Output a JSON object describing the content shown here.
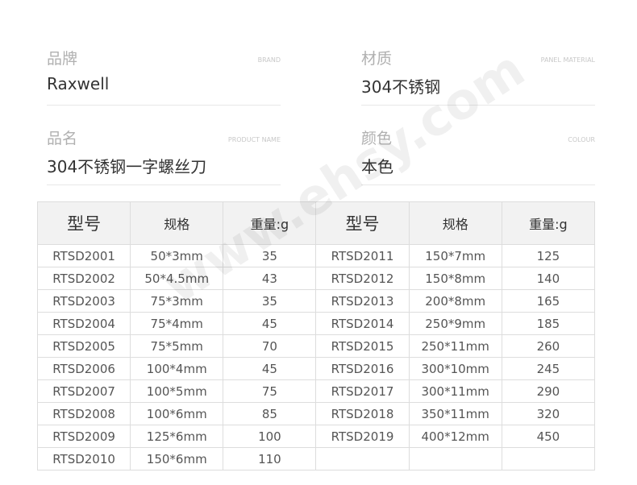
{
  "info": [
    {
      "label": "品牌",
      "en": "BRAND",
      "value": "Raxwell"
    },
    {
      "label": "材质",
      "en": "PANEL MATERIAL",
      "value": "304不锈钢"
    },
    {
      "label": "品名",
      "en": "PRODUCT NAME",
      "value": "304不锈钢一字螺丝刀"
    },
    {
      "label": "颜色",
      "en": "COLOUR",
      "value": "本色"
    }
  ],
  "table": {
    "headers": [
      "型号",
      "规格",
      "重量:g",
      "型号",
      "规格",
      "重量:g"
    ],
    "rows": [
      [
        "RTSD2001",
        "50*3mm",
        "35",
        "RTSD2011",
        "150*7mm",
        "125"
      ],
      [
        "RTSD2002",
        "50*4.5mm",
        "43",
        "RTSD2012",
        "150*8mm",
        "140"
      ],
      [
        "RTSD2003",
        "75*3mm",
        "35",
        "RTSD2013",
        "200*8mm",
        "165"
      ],
      [
        "RTSD2004",
        "75*4mm",
        "45",
        "RTSD2014",
        "250*9mm",
        "185"
      ],
      [
        "RTSD2005",
        "75*5mm",
        "70",
        "RTSD2015",
        "250*11mm",
        "260"
      ],
      [
        "RTSD2006",
        "100*4mm",
        "45",
        "RTSD2016",
        "300*10mm",
        "245"
      ],
      [
        "RTSD2007",
        "100*5mm",
        "75",
        "RTSD2017",
        "300*11mm",
        "290"
      ],
      [
        "RTSD2008",
        "100*6mm",
        "85",
        "RTSD2018",
        "350*11mm",
        "320"
      ],
      [
        "RTSD2009",
        "125*6mm",
        "100",
        "RTSD2019",
        "400*12mm",
        "450"
      ],
      [
        "RTSD2010",
        "150*6mm",
        "110",
        "",
        "",
        ""
      ]
    ]
  },
  "watermark": "www.ehsy.com"
}
